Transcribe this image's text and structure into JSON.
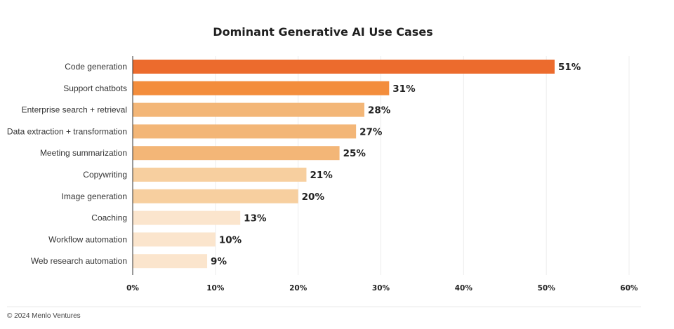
{
  "chart_data": {
    "type": "bar",
    "orientation": "horizontal",
    "title": "Dominant Generative AI Use Cases",
    "categories": [
      "Code generation",
      "Support chatbots",
      "Enterprise search + retrieval",
      "Data extraction + transformation",
      "Meeting summarization",
      "Copywriting",
      "Image generation",
      "Coaching",
      "Workflow automation",
      "Web research automation"
    ],
    "values": [
      51,
      31,
      28,
      27,
      25,
      21,
      20,
      13,
      10,
      9
    ],
    "value_labels": [
      "51%",
      "31%",
      "28%",
      "27%",
      "25%",
      "21%",
      "20%",
      "13%",
      "10%",
      "9%"
    ],
    "bar_colors": [
      "#ec6b2d",
      "#f38d3c",
      "#f3b677",
      "#f3b677",
      "#f3b677",
      "#f7cf9f",
      "#f7cf9f",
      "#fbe5cd",
      "#fbe5cd",
      "#fbe5cd"
    ],
    "xlim": [
      0,
      60
    ],
    "xticks": [
      0,
      10,
      20,
      30,
      40,
      50,
      60
    ],
    "xtick_labels": [
      "0%",
      "10%",
      "20%",
      "30%",
      "40%",
      "50%",
      "60%"
    ],
    "xlabel": "",
    "ylabel": "",
    "grid": "vertical"
  },
  "footer": {
    "copyright": "© 2024 Menlo Ventures"
  },
  "colors": {
    "grid": "#ececec",
    "axis": "#333333"
  }
}
